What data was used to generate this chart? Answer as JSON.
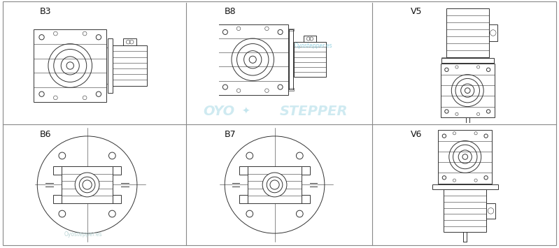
{
  "bg_color": "#ffffff",
  "border_color": "#888888",
  "line_color": "#333333",
  "label_color": "#111111",
  "watermark_color_center": "#88ccdd",
  "watermark_color_corner": "#aacccc",
  "labels": [
    "B3",
    "B8",
    "V5",
    "B6",
    "B7",
    "V6"
  ],
  "fig_width": 7.99,
  "fig_height": 3.55,
  "label_fontsize": 9
}
